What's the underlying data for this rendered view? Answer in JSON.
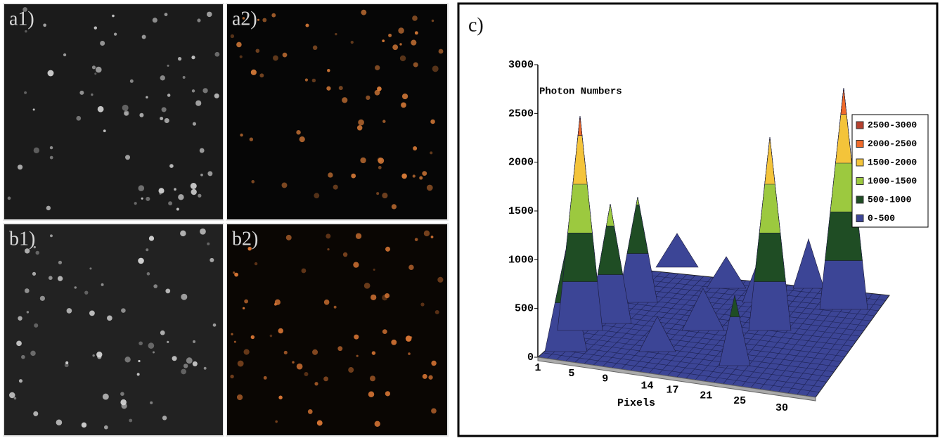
{
  "panels": [
    {
      "label": "a1)"
    },
    {
      "label": "a2)"
    },
    {
      "label": "b1)"
    },
    {
      "label": "b2)"
    }
  ],
  "plot": {
    "label": "c)",
    "z_title": "Photon Numbers",
    "x_title": "Pixels",
    "z_ticks": [
      0,
      500,
      1000,
      1500,
      2000,
      2500,
      3000
    ],
    "x_ticks": [
      1,
      5,
      9,
      14,
      17,
      21,
      25,
      30
    ],
    "legend": [
      {
        "label": "2500-3000",
        "color": "#b5412f"
      },
      {
        "label": "2000-2500",
        "color": "#f06a2a"
      },
      {
        "label": "1500-2000",
        "color": "#f4c43a"
      },
      {
        "label": "1000-1500",
        "color": "#9cc93f"
      },
      {
        "label": "500-1000",
        "color": "#1f4d24"
      },
      {
        "label": "0-500",
        "color": "#3c4596"
      }
    ]
  }
}
